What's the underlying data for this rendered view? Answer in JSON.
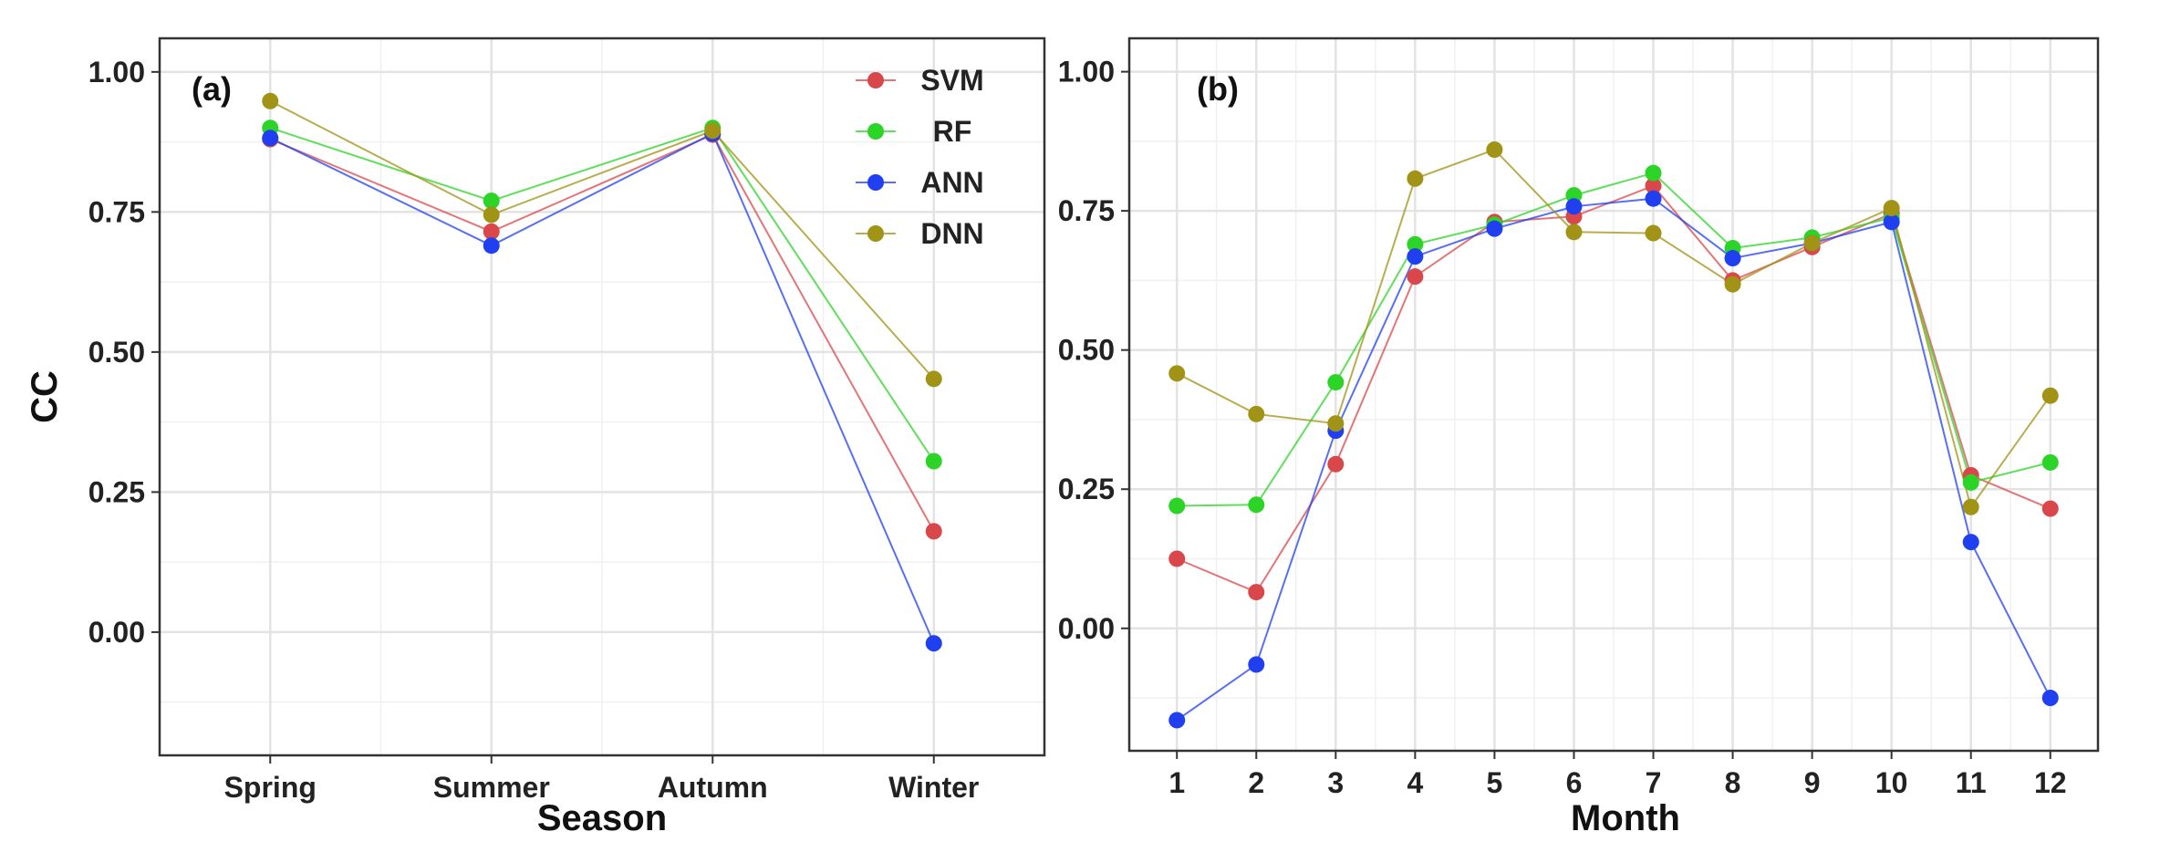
{
  "chart_data": [
    {
      "id": "a",
      "type": "line",
      "panel_label": "(a)",
      "xlabel": "Season",
      "ylabel": "CC",
      "categories": [
        "Spring",
        "Summer",
        "Autumn",
        "Winter"
      ],
      "ylim": [
        -0.22,
        1.06
      ],
      "yticks": [
        0.0,
        0.25,
        0.5,
        0.75,
        1.0
      ],
      "ytick_labels": [
        "0.00",
        "0.25",
        "0.50",
        "0.75",
        "1.00"
      ],
      "grid": true,
      "legend": "top-right",
      "series": [
        {
          "name": "SVM",
          "color": "#d9474a",
          "values": [
            0.88,
            0.715,
            0.888,
            0.18
          ]
        },
        {
          "name": "RF",
          "color": "#2bd426",
          "values": [
            0.9,
            0.77,
            0.9,
            0.305
          ]
        },
        {
          "name": "ANN",
          "color": "#1f3ff0",
          "values": [
            0.882,
            0.69,
            0.89,
            -0.02
          ]
        },
        {
          "name": "DNN",
          "color": "#a09315",
          "values": [
            0.948,
            0.745,
            0.895,
            0.452
          ]
        }
      ]
    },
    {
      "id": "b",
      "type": "line",
      "panel_label": "(b)",
      "xlabel": "Month",
      "ylabel": "",
      "categories": [
        "1",
        "2",
        "3",
        "4",
        "5",
        "6",
        "7",
        "8",
        "9",
        "10",
        "11",
        "12"
      ],
      "ylim": [
        -0.22,
        1.06
      ],
      "yticks": [
        0.0,
        0.25,
        0.5,
        0.75,
        1.0
      ],
      "ytick_labels": [
        "0.00",
        "0.25",
        "0.50",
        "0.75",
        "1.00"
      ],
      "grid": true,
      "legend": "none",
      "series": [
        {
          "name": "SVM",
          "color": "#d9474a",
          "values": [
            0.125,
            0.065,
            0.295,
            0.632,
            0.73,
            0.74,
            0.795,
            0.625,
            0.685,
            0.745,
            0.275,
            0.215
          ]
        },
        {
          "name": "RF",
          "color": "#2bd426",
          "values": [
            0.22,
            0.222,
            0.442,
            0.69,
            0.725,
            0.778,
            0.818,
            0.683,
            0.702,
            0.738,
            0.262,
            0.298
          ]
        },
        {
          "name": "ANN",
          "color": "#1f3ff0",
          "values": [
            -0.165,
            -0.065,
            0.355,
            0.668,
            0.718,
            0.758,
            0.772,
            0.665,
            0.692,
            0.73,
            0.155,
            -0.125
          ]
        },
        {
          "name": "DNN",
          "color": "#a09315",
          "values": [
            0.458,
            0.385,
            0.368,
            0.808,
            0.86,
            0.712,
            0.71,
            0.618,
            0.692,
            0.755,
            0.218,
            0.418
          ]
        }
      ]
    }
  ]
}
